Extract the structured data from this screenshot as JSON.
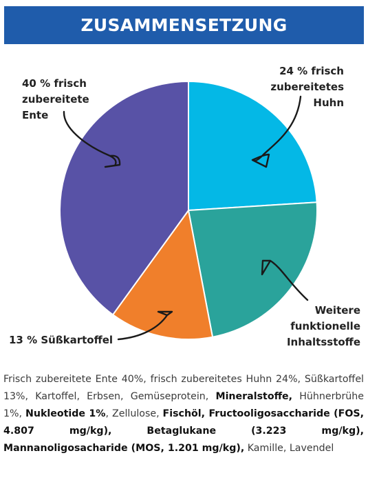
{
  "header": {
    "title": "ZUSAMMENSETZUNG"
  },
  "chart_data": {
    "type": "pie",
    "start_angle_deg": 0,
    "direction": "clockwise",
    "slices": [
      {
        "label_lines": [
          "24 % frisch",
          "zubereitetes",
          "Huhn"
        ],
        "value": 24,
        "color": "#04b8e6"
      },
      {
        "label_lines": [
          "Weitere",
          "funktionelle",
          "Inhaltsstoffe"
        ],
        "value": 23,
        "color": "#2aa39b"
      },
      {
        "label_lines": [
          "13 % Süßkartoffel"
        ],
        "value": 13,
        "color": "#f07f2b"
      },
      {
        "label_lines": [
          "40 % frisch",
          "zubereitete",
          "Ente"
        ],
        "value": 40,
        "color": "#5852a6"
      }
    ]
  },
  "description": {
    "segments": [
      {
        "text": "Frisch zubereitete Ente 40%, frisch zubereitetes Huhn 24%, Süßkartoffel 13%, Kartoffel, Erbsen, Gemüseprotein, ",
        "bold": false
      },
      {
        "text": "Mineralstoffe,",
        "bold": true
      },
      {
        "text": " Hühnerbrühe 1%, ",
        "bold": false
      },
      {
        "text": "Nukleotide 1%",
        "bold": true
      },
      {
        "text": ", Zellulose, ",
        "bold": false
      },
      {
        "text": "Fischöl, Fructooligosaccharide (FOS, 4.807 mg/kg), Betaglukane (3.223 mg/kg), Mannanoligosacharide (MOS, 1.201 mg/kg),",
        "bold": true
      },
      {
        "text": " Kamille, Lavendel",
        "bold": false
      }
    ]
  }
}
